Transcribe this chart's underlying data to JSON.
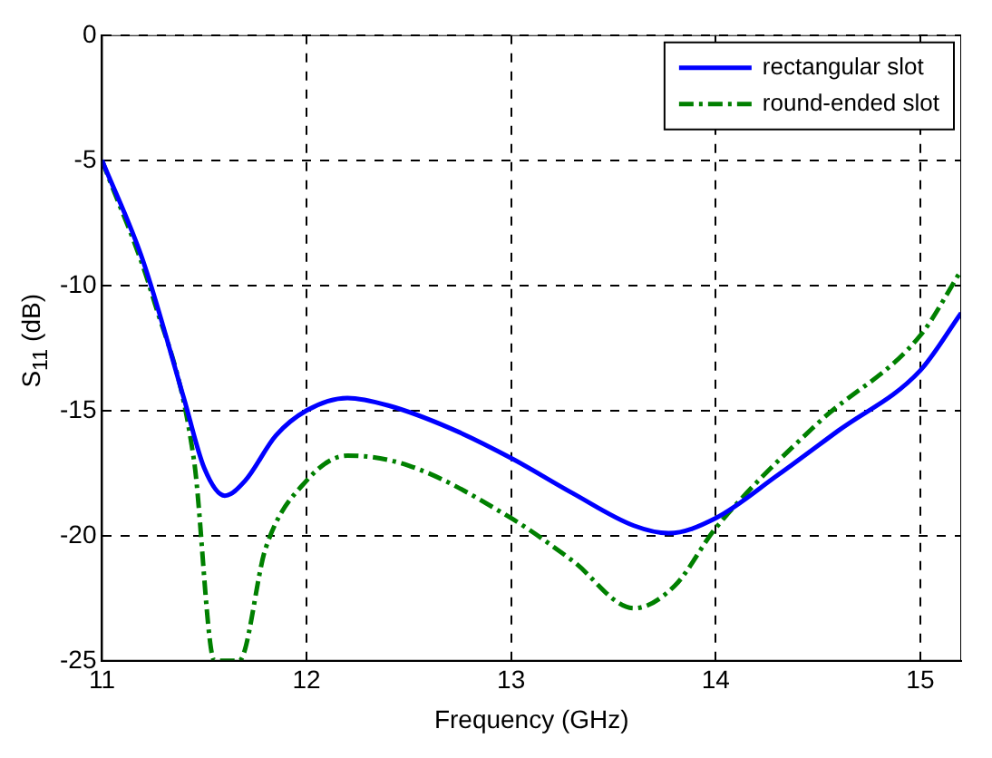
{
  "chart_data": {
    "type": "line",
    "xlabel": "Frequency (GHz)",
    "ylabel": "S$_{11}$ (dB)",
    "xlim": [
      11,
      15.2
    ],
    "ylim": [
      -25,
      0
    ],
    "xticks": [
      11,
      12,
      13,
      14,
      15
    ],
    "yticks": [
      -25,
      -20,
      -15,
      -10,
      -5,
      0
    ],
    "grid": true,
    "legend": "top right",
    "series": [
      {
        "name": "rectangular slot",
        "color": "#0000ff",
        "line_style": "solid",
        "x": [
          11,
          11.2,
          11.4,
          11.5,
          11.6,
          11.7,
          11.85,
          12,
          12.2,
          12.4,
          12.7,
          13,
          13.3,
          13.6,
          13.77,
          14,
          14.3,
          14.6,
          15,
          15.2
        ],
        "values": [
          -5,
          -9,
          -14.5,
          -17.3,
          -18.4,
          -17.8,
          -16,
          -15,
          -14.5,
          -14.8,
          -15.7,
          -16.9,
          -18.3,
          -19.6,
          -19.9,
          -19.3,
          -17.6,
          -15.8,
          -13.4,
          -11.1
        ]
      },
      {
        "name": "round-ended slot",
        "color": "#008000",
        "line_style": "dashed",
        "x": [
          11,
          11.25,
          11.45,
          11.55,
          11.67,
          11.8,
          12,
          12.2,
          12.5,
          13,
          13.3,
          13.6,
          13.8,
          14,
          14.5,
          15,
          15.2
        ],
        "values": [
          -5,
          -10.5,
          -17,
          -25,
          -25,
          -20.5,
          -17.8,
          -16.8,
          -17.2,
          -19.3,
          -21,
          -22.9,
          -22,
          -19.7,
          -15.5,
          -12,
          -9.4
        ]
      }
    ]
  }
}
